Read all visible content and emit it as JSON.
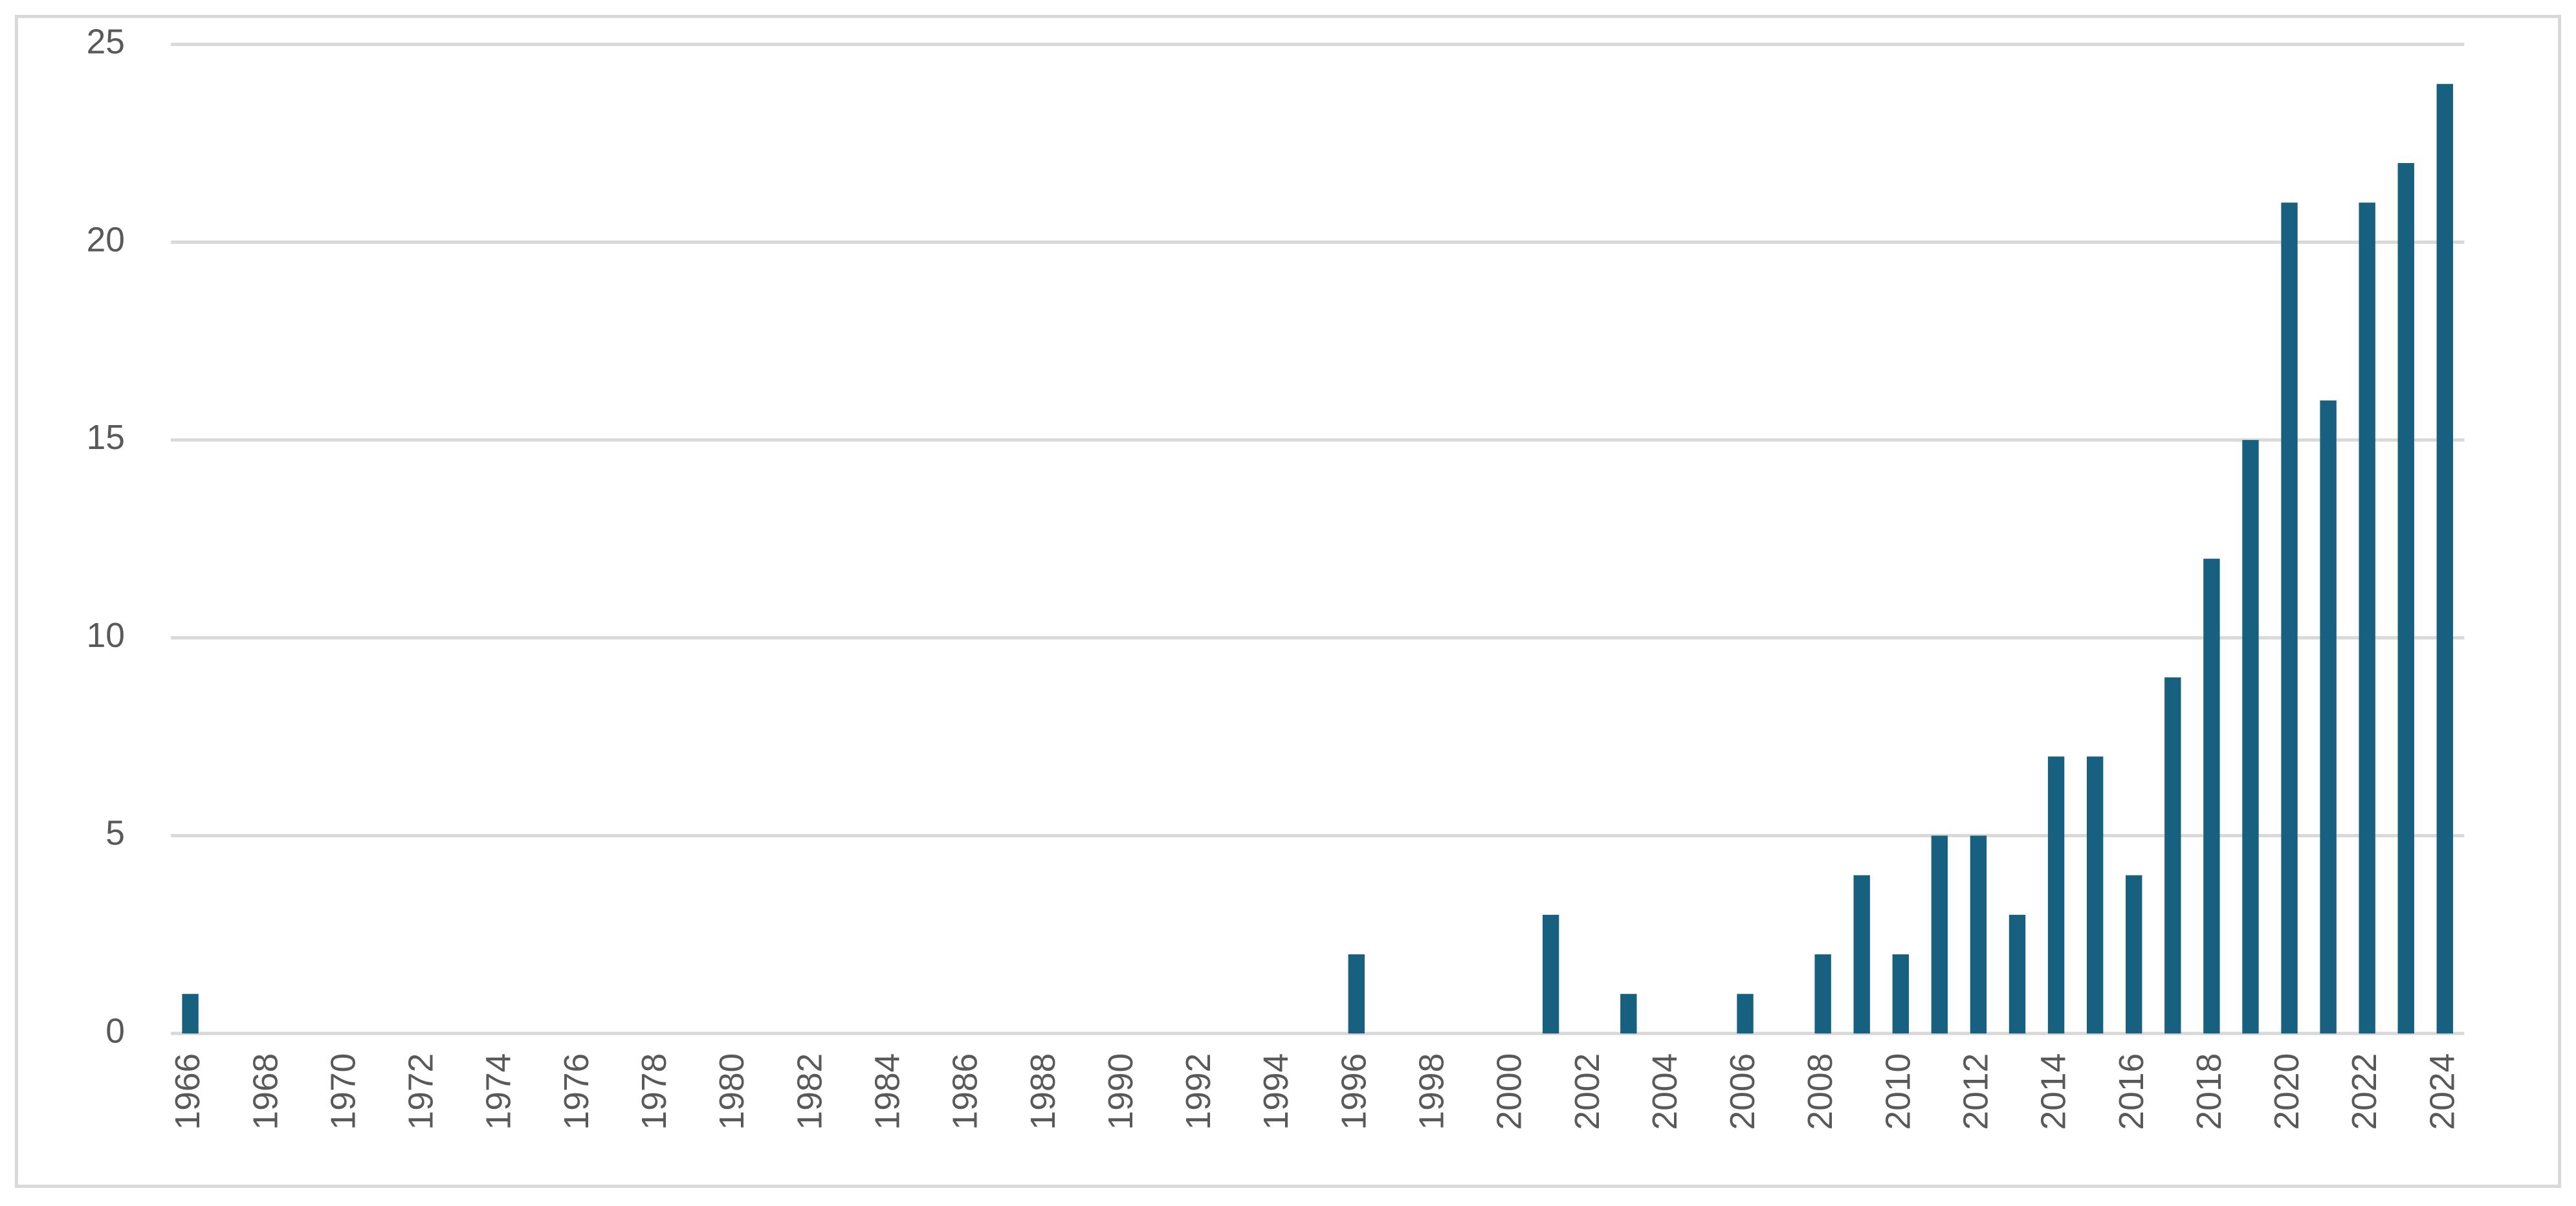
{
  "chart_data": {
    "type": "bar",
    "categories": [
      "1966",
      null,
      "1968",
      null,
      "1970",
      null,
      "1972",
      null,
      "1974",
      null,
      "1976",
      null,
      "1978",
      null,
      "1980",
      null,
      "1982",
      null,
      "1984",
      null,
      "1986",
      null,
      "1988",
      null,
      "1990",
      null,
      "1992",
      null,
      "1994",
      null,
      "1996",
      null,
      "1998",
      null,
      "2000",
      null,
      "2002",
      null,
      "2004",
      null,
      "2006",
      null,
      "2008",
      null,
      "2010",
      null,
      "2012",
      null,
      "2014",
      null,
      "2016",
      null,
      "2018",
      null,
      "2020",
      null,
      "2022",
      null,
      "2024"
    ],
    "values": [
      1,
      0,
      0,
      0,
      0,
      0,
      0,
      0,
      0,
      0,
      0,
      0,
      0,
      0,
      0,
      0,
      0,
      0,
      0,
      0,
      0,
      0,
      0,
      0,
      0,
      0,
      0,
      0,
      0,
      0,
      2,
      0,
      0,
      0,
      0,
      3,
      0,
      1,
      0,
      0,
      1,
      0,
      2,
      4,
      2,
      5,
      5,
      3,
      7,
      7,
      4,
      9,
      12,
      15,
      21,
      16,
      21,
      22,
      24
    ],
    "color": "#17607f",
    "ylim": [
      0,
      25
    ],
    "yticks": [
      0,
      5,
      10,
      15,
      20,
      25
    ],
    "grid": true
  }
}
